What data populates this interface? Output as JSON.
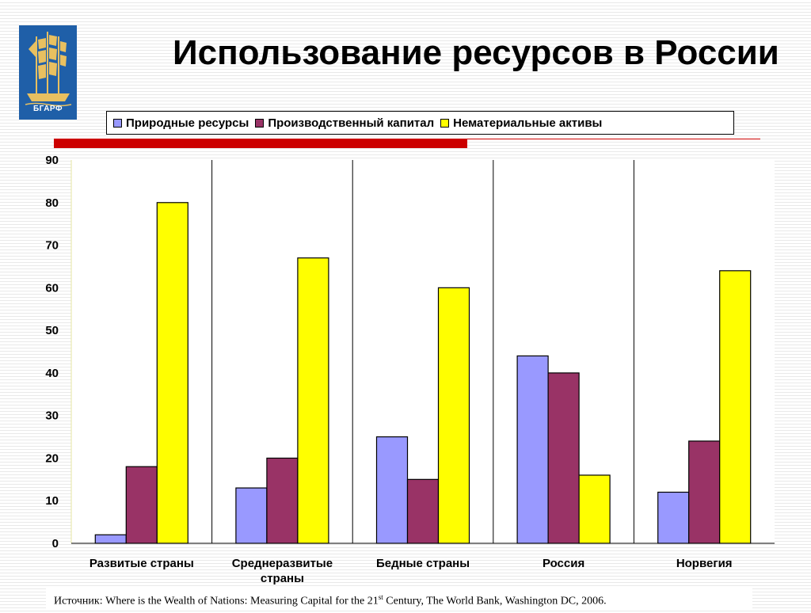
{
  "header": {
    "logo_text": "БГАРФ",
    "title": "Использование ресурсов в России"
  },
  "chart_data": {
    "type": "bar",
    "title": "Использование ресурсов в России",
    "categories": [
      "Развитые страны",
      "Среднеразвитые страны",
      "Бедные страны",
      "Россия",
      "Норвегия"
    ],
    "series": [
      {
        "name": "Природные ресурсы",
        "color": "#9999ff",
        "values": [
          2,
          13,
          25,
          44,
          12
        ]
      },
      {
        "name": "Производственный капитал",
        "color": "#993366",
        "values": [
          18,
          20,
          15,
          40,
          24
        ]
      },
      {
        "name": "Нематериальные активы",
        "color": "#ffff00",
        "values": [
          80,
          67,
          60,
          16,
          64
        ]
      }
    ],
    "ylim": [
      0,
      90
    ],
    "yticks": [
      0,
      10,
      20,
      30,
      40,
      50,
      60,
      70,
      80,
      90
    ],
    "xlabel": "",
    "ylabel": "",
    "legend": "top"
  },
  "footer": {
    "source_prefix": "Источник: Where is the Wealth of Nations: Measuring Capital for the 21",
    "source_sup": "st",
    "source_suffix": " Century, The World Bank, Washington DC, 2006."
  }
}
